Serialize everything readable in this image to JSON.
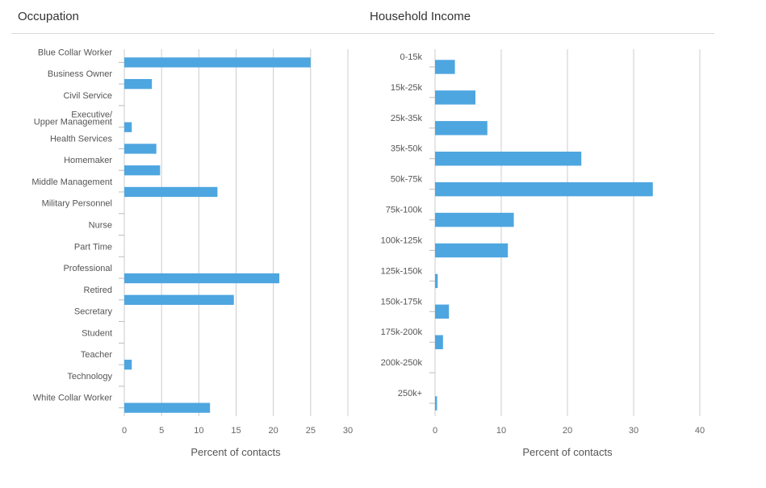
{
  "panels": [
    {
      "title": "Occupation",
      "chart_data": {
        "type": "bar",
        "orientation": "horizontal",
        "categories": [
          "Blue Collar Worker",
          "Business Owner",
          "Civil Service",
          "Executive/Upper Management",
          "Health Services",
          "Homemaker",
          "Middle Management",
          "Military Personnel",
          "Nurse",
          "Part Time",
          "Professional",
          "Retired",
          "Secretary",
          "Student",
          "Teacher",
          "Technology",
          "White Collar Worker"
        ],
        "values": [
          25.0,
          3.7,
          0,
          1.0,
          4.3,
          4.8,
          12.5,
          0,
          0,
          0,
          20.8,
          14.7,
          0,
          0,
          1.0,
          0,
          11.5
        ],
        "xlabel": "Percent of contacts",
        "ylabel": "",
        "xlim": [
          0,
          30
        ],
        "xticks": [
          0,
          5,
          10,
          15,
          20,
          25,
          30
        ],
        "grid": true,
        "bar_color": "#4ea6e0"
      }
    },
    {
      "title": "Household Income",
      "chart_data": {
        "type": "bar",
        "orientation": "horizontal",
        "categories": [
          "0-15k",
          "15k-25k",
          "25k-35k",
          "35k-50k",
          "50k-75k",
          "75k-100k",
          "100k-125k",
          "125k-150k",
          "150k-175k",
          "175k-200k",
          "200k-250k",
          "250k+"
        ],
        "values": [
          3.0,
          6.1,
          7.9,
          22.1,
          32.9,
          11.9,
          11.0,
          0.4,
          2.1,
          1.2,
          0,
          0.3
        ],
        "xlabel": "Percent of contacts",
        "ylabel": "",
        "xlim": [
          0,
          40
        ],
        "xticks": [
          0,
          10,
          20,
          30,
          40
        ],
        "grid": true,
        "bar_color": "#4ea6e0"
      }
    }
  ]
}
